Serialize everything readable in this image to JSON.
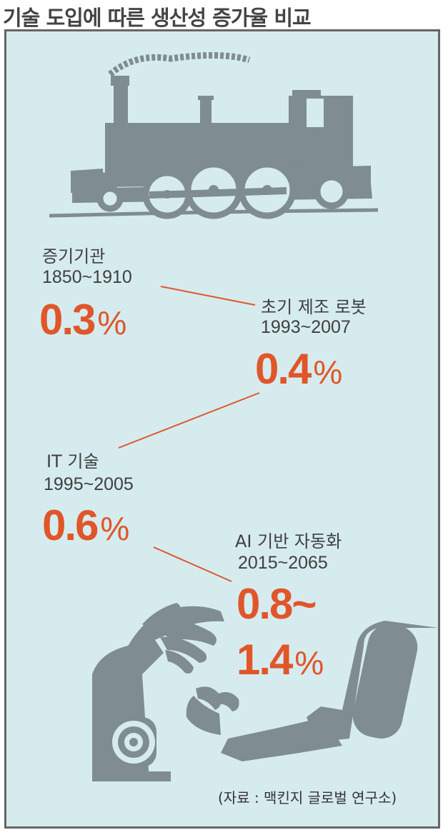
{
  "title": "기술 도입에 따른 생산성 증가율 비교",
  "chart_data": {
    "type": "infographic",
    "title": "기술 도입에 따른 생산성 증가율 비교",
    "unit": "%",
    "items": [
      {
        "name": "증기기관",
        "period": "1850~1910",
        "value_text": "0.3",
        "value": 0.3
      },
      {
        "name": "초기 제조 로봇",
        "period": "1993~2007",
        "value_text": "0.4",
        "value": 0.4
      },
      {
        "name": "IT 기술",
        "period": "1995~2005",
        "value_text": "0.6",
        "value": 0.6
      },
      {
        "name": "AI 기반 자동화",
        "period": "2015~2065",
        "value_text": "0.8~",
        "value_text_2": "1.4",
        "value_min": 0.8,
        "value_max": 1.4
      }
    ]
  },
  "source": "(자료 : 맥킨지 글로벌 연구소)",
  "colors": {
    "background": "#d6ebee",
    "accent": "#e0562a",
    "illustration": "#7f8c90",
    "text": "#3f3f3f"
  },
  "icons": [
    "steam-locomotive-icon",
    "robot-arms-icon"
  ]
}
